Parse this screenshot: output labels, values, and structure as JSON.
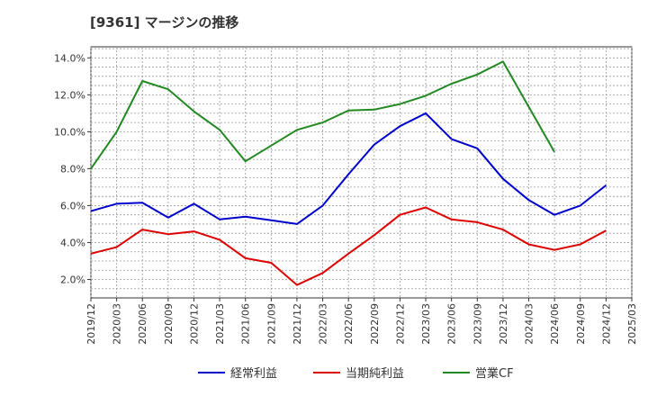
{
  "chart_data": {
    "type": "line",
    "title": "[9361]  マージンの推移",
    "xlabel": "",
    "ylabel": "",
    "ylim": [
      1.0,
      14.6
    ],
    "y_ticks": [
      2.0,
      4.0,
      6.0,
      8.0,
      10.0,
      12.0,
      14.0
    ],
    "y_tick_labels": [
      "2.0%",
      "4.0%",
      "6.0%",
      "8.0%",
      "10.0%",
      "12.0%",
      "14.0%"
    ],
    "categories": [
      "2019/12",
      "2020/03",
      "2020/06",
      "2020/09",
      "2020/12",
      "2021/03",
      "2021/06",
      "2021/09",
      "2021/12",
      "2022/03",
      "2022/06",
      "2022/09",
      "2022/12",
      "2023/03",
      "2023/06",
      "2023/09",
      "2023/12",
      "2024/03",
      "2024/06",
      "2024/09",
      "2024/12",
      "2025/03"
    ],
    "grid": true,
    "legend_position": "bottom",
    "series": [
      {
        "name": "経常利益",
        "color": "#0000cc",
        "values": [
          5.7,
          6.1,
          6.15,
          5.35,
          6.1,
          5.25,
          5.4,
          5.2,
          5.0,
          6.0,
          7.7,
          9.3,
          10.3,
          11.0,
          9.6,
          9.1,
          7.45,
          6.3,
          5.5,
          6.0,
          7.1,
          null
        ]
      },
      {
        "name": "当期純利益",
        "color": "#dd0000",
        "values": [
          3.4,
          3.75,
          4.7,
          4.45,
          4.6,
          4.15,
          3.15,
          2.9,
          1.7,
          2.35,
          3.4,
          4.4,
          5.5,
          5.9,
          5.25,
          5.1,
          4.7,
          3.9,
          3.6,
          3.9,
          4.65,
          null
        ]
      },
      {
        "name": "営業CF",
        "color": "#228822",
        "values": [
          8.0,
          10.0,
          12.75,
          12.3,
          11.1,
          10.1,
          8.4,
          9.25,
          10.1,
          10.5,
          11.15,
          11.2,
          11.5,
          11.95,
          12.6,
          13.1,
          13.8,
          11.35,
          8.9,
          null,
          null,
          null
        ]
      }
    ]
  }
}
